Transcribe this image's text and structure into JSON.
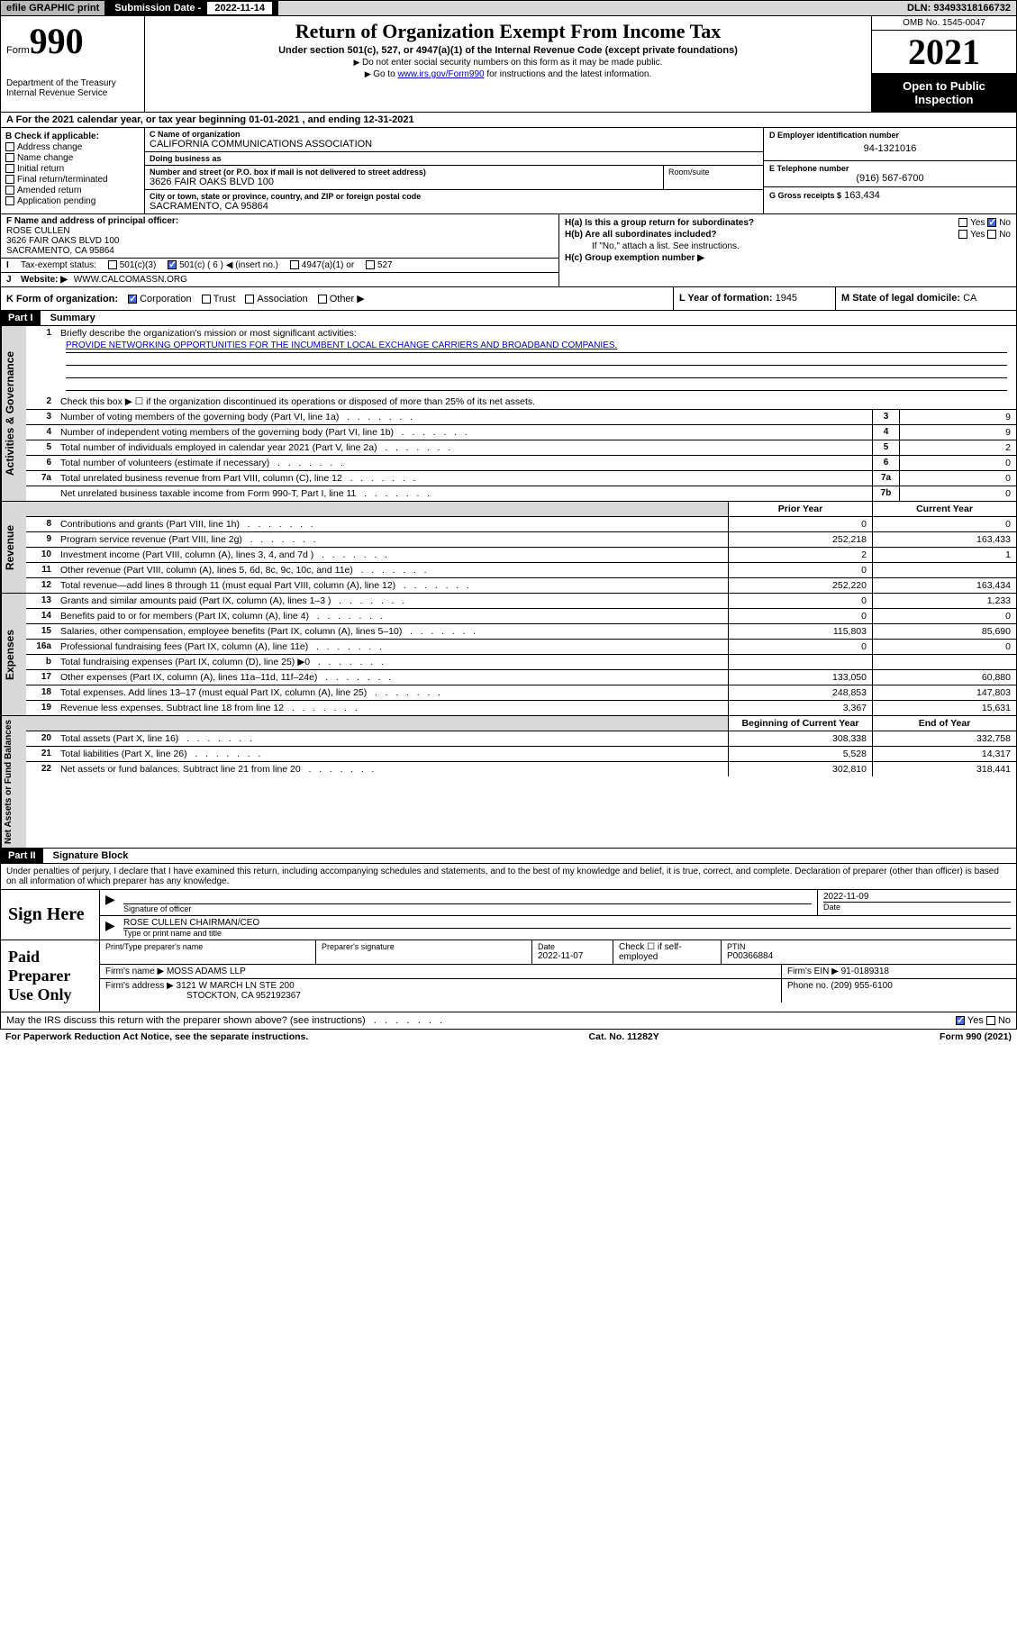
{
  "top_bar": {
    "efile": "efile GRAPHIC print",
    "submission_label": "Submission Date -",
    "submission_date": "2022-11-14",
    "dln_label": "DLN:",
    "dln": "93493318166732"
  },
  "header": {
    "form_label": "Form",
    "form_number": "990",
    "dept": "Department of the Treasury\nInternal Revenue Service",
    "title": "Return of Organization Exempt From Income Tax",
    "sub": "Under section 501(c), 527, or 4947(a)(1) of the Internal Revenue Code (except private foundations)",
    "note1": "Do not enter social security numbers on this form as it may be made public.",
    "note2_pre": "Go to ",
    "note2_link": "www.irs.gov/Form990",
    "note2_post": " for instructions and the latest information.",
    "omb": "OMB No. 1545-0047",
    "year": "2021",
    "open_public": "Open to Public Inspection"
  },
  "line_a": "For the 2021 calendar year, or tax year beginning 01-01-2021   , and ending 12-31-2021",
  "box_b": {
    "heading": "B Check if applicable:",
    "items": [
      "Address change",
      "Name change",
      "Initial return",
      "Final return/terminated",
      "Amended return",
      "Application pending"
    ]
  },
  "box_c": {
    "name_label": "C Name of organization",
    "name": "CALIFORNIA COMMUNICATIONS ASSOCIATION",
    "dba_label": "Doing business as",
    "dba": "",
    "street_label": "Number and street (or P.O. box if mail is not delivered to street address)",
    "street": "3626 FAIR OAKS BLVD 100",
    "room_label": "Room/suite",
    "city_label": "City or town, state or province, country, and ZIP or foreign postal code",
    "city": "SACRAMENTO, CA  95864"
  },
  "box_d": {
    "ein_label": "D Employer identification number",
    "ein": "94-1321016",
    "phone_label": "E Telephone number",
    "phone": "(916) 567-6700",
    "gross_label": "G Gross receipts $",
    "gross": "163,434"
  },
  "box_f": {
    "label": "F  Name and address of principal officer:",
    "name": "ROSE CULLEN",
    "addr1": "3626 FAIR OAKS BLVD 100",
    "addr2": "SACRAMENTO, CA  95864"
  },
  "box_h": {
    "ha": "H(a)  Is this a group return for subordinates?",
    "hb": "H(b)  Are all subordinates included?",
    "hb_note": "If \"No,\" attach a list. See instructions.",
    "hc": "H(c)  Group exemption number ▶"
  },
  "row_i": {
    "label": "Tax-exempt status:",
    "opts": [
      "501(c)(3)",
      "501(c) ( 6 ) ◀ (insert no.)",
      "4947(a)(1) or",
      "527"
    ],
    "checked_index": 1
  },
  "row_j": {
    "label": "Website: ▶",
    "value": "WWW.CALCOMASSN.ORG"
  },
  "row_k": {
    "label": "K Form of organization:",
    "opts": [
      "Corporation",
      "Trust",
      "Association",
      "Other ▶"
    ],
    "checked_index": 0
  },
  "row_l": {
    "label": "L Year of formation:",
    "value": "1945"
  },
  "row_m": {
    "label": "M State of legal domicile:",
    "value": "CA"
  },
  "part1": {
    "header": "Part I",
    "title": "Summary"
  },
  "governance": {
    "label": "Activities & Governance",
    "line1_label": "Briefly describe the organization's mission or most significant activities:",
    "mission": "PROVIDE NETWORKING OPPORTUNITIES FOR THE INCUMBENT LOCAL EXCHANGE CARRIERS AND BROADBAND COMPANIES.",
    "line2": "Check this box ▶ ☐  if the organization discontinued its operations or disposed of more than 25% of its net assets.",
    "rows": [
      {
        "n": "3",
        "desc": "Number of voting members of the governing body (Part VI, line 1a)",
        "box": "3",
        "val": "9"
      },
      {
        "n": "4",
        "desc": "Number of independent voting members of the governing body (Part VI, line 1b)",
        "box": "4",
        "val": "9"
      },
      {
        "n": "5",
        "desc": "Total number of individuals employed in calendar year 2021 (Part V, line 2a)",
        "box": "5",
        "val": "2"
      },
      {
        "n": "6",
        "desc": "Total number of volunteers (estimate if necessary)",
        "box": "6",
        "val": "0"
      },
      {
        "n": "7a",
        "desc": "Total unrelated business revenue from Part VIII, column (C), line 12",
        "box": "7a",
        "val": "0"
      },
      {
        "n": "",
        "desc": "Net unrelated business taxable income from Form 990-T, Part I, line 11",
        "box": "7b",
        "val": "0"
      }
    ]
  },
  "revenue": {
    "label": "Revenue",
    "col1": "Prior Year",
    "col2": "Current Year",
    "rows": [
      {
        "n": "8",
        "desc": "Contributions and grants (Part VIII, line 1h)",
        "p": "0",
        "c": "0"
      },
      {
        "n": "9",
        "desc": "Program service revenue (Part VIII, line 2g)",
        "p": "252,218",
        "c": "163,433"
      },
      {
        "n": "10",
        "desc": "Investment income (Part VIII, column (A), lines 3, 4, and 7d )",
        "p": "2",
        "c": "1"
      },
      {
        "n": "11",
        "desc": "Other revenue (Part VIII, column (A), lines 5, 6d, 8c, 9c, 10c, and 11e)",
        "p": "0",
        "c": ""
      },
      {
        "n": "12",
        "desc": "Total revenue—add lines 8 through 11 (must equal Part VIII, column (A), line 12)",
        "p": "252,220",
        "c": "163,434"
      }
    ]
  },
  "expenses": {
    "label": "Expenses",
    "rows": [
      {
        "n": "13",
        "desc": "Grants and similar amounts paid (Part IX, column (A), lines 1–3 )",
        "p": "0",
        "c": "1,233"
      },
      {
        "n": "14",
        "desc": "Benefits paid to or for members (Part IX, column (A), line 4)",
        "p": "0",
        "c": "0"
      },
      {
        "n": "15",
        "desc": "Salaries, other compensation, employee benefits (Part IX, column (A), lines 5–10)",
        "p": "115,803",
        "c": "85,690"
      },
      {
        "n": "16a",
        "desc": "Professional fundraising fees (Part IX, column (A), line 11e)",
        "p": "0",
        "c": "0"
      },
      {
        "n": "b",
        "desc": "Total fundraising expenses (Part IX, column (D), line 25) ▶0",
        "p": "",
        "c": "",
        "grey": true
      },
      {
        "n": "17",
        "desc": "Other expenses (Part IX, column (A), lines 11a–11d, 11f–24e)",
        "p": "133,050",
        "c": "60,880"
      },
      {
        "n": "18",
        "desc": "Total expenses. Add lines 13–17 (must equal Part IX, column (A), line 25)",
        "p": "248,853",
        "c": "147,803"
      },
      {
        "n": "19",
        "desc": "Revenue less expenses. Subtract line 18 from line 12",
        "p": "3,367",
        "c": "15,631"
      }
    ]
  },
  "netassets": {
    "label": "Net Assets or Fund Balances",
    "col1": "Beginning of Current Year",
    "col2": "End of Year",
    "rows": [
      {
        "n": "20",
        "desc": "Total assets (Part X, line 16)",
        "p": "308,338",
        "c": "332,758"
      },
      {
        "n": "21",
        "desc": "Total liabilities (Part X, line 26)",
        "p": "5,528",
        "c": "14,317"
      },
      {
        "n": "22",
        "desc": "Net assets or fund balances. Subtract line 21 from line 20",
        "p": "302,810",
        "c": "318,441"
      }
    ]
  },
  "part2": {
    "header": "Part II",
    "title": "Signature Block"
  },
  "perjury": "Under penalties of perjury, I declare that I have examined this return, including accompanying schedules and statements, and to the best of my knowledge and belief, it is true, correct, and complete. Declaration of preparer (other than officer) is based on all information of which preparer has any knowledge.",
  "sign_here": {
    "label": "Sign Here",
    "officer_sig_label": "Signature of officer",
    "date": "2022-11-09",
    "date_label": "Date",
    "officer_name": "ROSE CULLEN  CHAIRMAN/CEO",
    "name_label": "Type or print name and title"
  },
  "preparer": {
    "label": "Paid Preparer Use Only",
    "print_name_label": "Print/Type preparer's name",
    "print_name": "",
    "sig_label": "Preparer's signature",
    "date_label": "Date",
    "date": "2022-11-07",
    "check_label": "Check ☐ if self-employed",
    "ptin_label": "PTIN",
    "ptin": "P00366884",
    "firm_name_label": "Firm's name    ▶",
    "firm_name": "MOSS ADAMS LLP",
    "firm_ein_label": "Firm's EIN ▶",
    "firm_ein": "91-0189318",
    "firm_addr_label": "Firm's address ▶",
    "firm_addr1": "3121 W MARCH LN STE 200",
    "firm_addr2": "STOCKTON, CA  952192367",
    "phone_label": "Phone no.",
    "phone": "(209) 955-6100"
  },
  "discuss": "May the IRS discuss this return with the preparer shown above? (see instructions)",
  "footer": {
    "left": "For Paperwork Reduction Act Notice, see the separate instructions.",
    "mid": "Cat. No. 11282Y",
    "right": "Form 990 (2021)"
  }
}
